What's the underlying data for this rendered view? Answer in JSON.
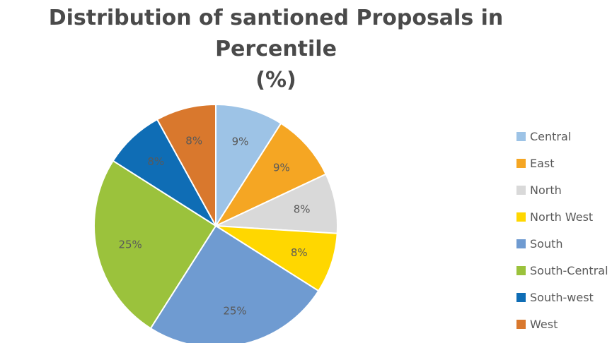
{
  "title": {
    "line1": "Distribution of santioned Proposals in Percentile",
    "line2": "(%)"
  },
  "chart_data": {
    "type": "pie",
    "title": "Distribution of santioned Proposals in Percentile (%)",
    "slices": [
      {
        "label": "Central",
        "value": 9,
        "text": "9%",
        "color": "#9dc3e6"
      },
      {
        "label": "East",
        "value": 9,
        "text": "9%",
        "color": "#f5a623"
      },
      {
        "label": "North",
        "value": 8,
        "text": "8%",
        "color": "#d9d9d9"
      },
      {
        "label": "North West",
        "value": 8,
        "text": "8%",
        "color": "#ffd700"
      },
      {
        "label": "South",
        "value": 25,
        "text": "25%",
        "color": "#6f9bd1"
      },
      {
        "label": "South-Central",
        "value": 25,
        "text": "25%",
        "color": "#9bc23c"
      },
      {
        "label": "South-west",
        "value": 8,
        "text": "8%",
        "color": "#0f6db5"
      },
      {
        "label": "West",
        "value": 8,
        "text": "8%",
        "color": "#d9782d"
      }
    ],
    "legend_position": "right",
    "label_color": "#595959"
  }
}
